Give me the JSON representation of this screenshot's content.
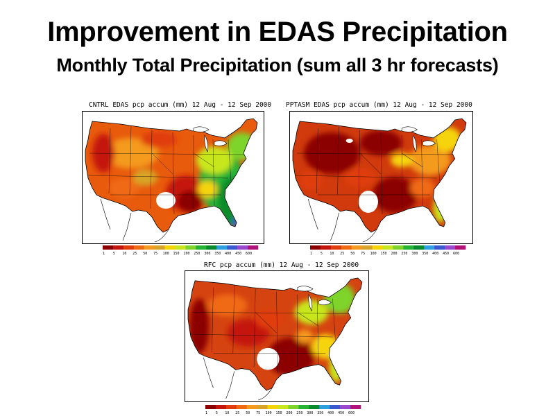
{
  "slide": {
    "title": "Improvement in EDAS Precipitation",
    "subtitle": "Monthly Total Precipitation (sum all 3 hr forecasts)"
  },
  "colorscale": {
    "levels": [
      "1",
      "5",
      "10",
      "25",
      "50",
      "75",
      "100",
      "150",
      "200",
      "250",
      "300",
      "350",
      "400",
      "450",
      "600"
    ],
    "colors": [
      "#8b0000",
      "#c4140c",
      "#e03c0e",
      "#f06a12",
      "#f49a1e",
      "#d8a428",
      "#f6d40a",
      "#c8e61e",
      "#7ed42a",
      "#26b434",
      "#0a8c2c",
      "#2ea0e0",
      "#3a5ad0",
      "#9a48cc",
      "#b0127a"
    ],
    "continent_color": "#ffffff",
    "line_color": "#000000"
  },
  "panels": [
    {
      "id": "cntrl",
      "title": "CNTRL EDAS pcp accum (mm) 12 Aug - 12 Sep 2000"
    },
    {
      "id": "pptasm",
      "title": "PPTASM EDAS pcp accum (mm) 12 Aug - 12 Sep 2000"
    },
    {
      "id": "rfc",
      "title": "RFC pcp accum (mm) 12 Aug - 12 Sep 2000"
    }
  ]
}
